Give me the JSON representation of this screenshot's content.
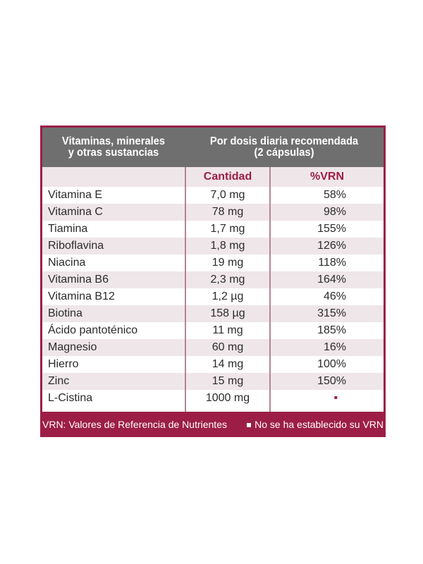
{
  "header": {
    "left_line1": "Vitaminas, minerales",
    "left_line2": "y otras sustancias",
    "right_line1": "Por dosis diaria recomendada",
    "right_line2": "(2 cápsulas)"
  },
  "columns": {
    "quantity": "Cantidad",
    "vrn": "%VRN"
  },
  "rows": [
    {
      "name": "Vitamina E",
      "quantity": "7,0 mg",
      "vrn": "58%"
    },
    {
      "name": "Vitamina C",
      "quantity": "78 mg",
      "vrn": "98%"
    },
    {
      "name": "Tiamina",
      "quantity": "1,7 mg",
      "vrn": "155%"
    },
    {
      "name": "Riboflavina",
      "quantity": "1,8 mg",
      "vrn": "126%"
    },
    {
      "name": "Niacina",
      "quantity": "19 mg",
      "vrn": "118%"
    },
    {
      "name": "Vitamina B6",
      "quantity": "2,3 mg",
      "vrn": "164%"
    },
    {
      "name": "Vitamina B12",
      "quantity": "1,2 µg",
      "vrn": "46%"
    },
    {
      "name": "Biotina",
      "quantity": "158 µg",
      "vrn": "315%"
    },
    {
      "name": "Ácido pantoténico",
      "quantity": "11 mg",
      "vrn": "185%"
    },
    {
      "name": "Magnesio",
      "quantity": "60 mg",
      "vrn": "16%"
    },
    {
      "name": "Hierro",
      "quantity": "14 mg",
      "vrn": "100%"
    },
    {
      "name": "Zinc",
      "quantity": "15 mg",
      "vrn": "150%"
    },
    {
      "name": "L-Cistina",
      "quantity": "1000 mg",
      "vrn": "▪"
    }
  ],
  "footer": {
    "left": "VRN: Valores de Referencia de Nutrientes",
    "right": "No se ha establecido su VRN"
  },
  "colors": {
    "accent": "#9c1e46",
    "header_bg": "#6f6f6f",
    "row_shade": "#efe6ea",
    "text": "#2b2b2b"
  }
}
